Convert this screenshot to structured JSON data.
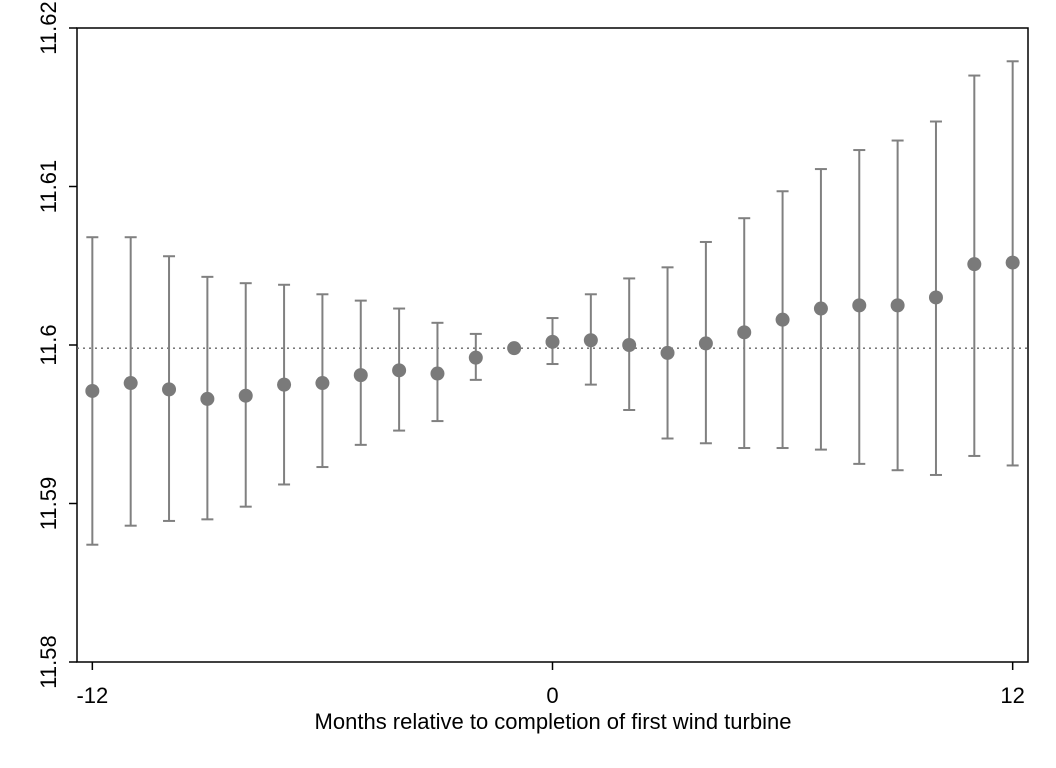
{
  "chart_data": {
    "type": "scatter",
    "title": "",
    "xlabel": "Months relative to completion of first wind turbine",
    "ylabel": "",
    "xlim": [
      -12.4,
      12.4
    ],
    "ylim": [
      11.58,
      11.62
    ],
    "x_ticks": [
      -12,
      0,
      12
    ],
    "x_tick_labels": [
      "-12",
      "0",
      "12"
    ],
    "y_ticks": [
      11.58,
      11.59,
      11.6,
      11.61,
      11.62
    ],
    "y_tick_labels": [
      "11.58",
      "11.59",
      "11.6",
      "11.61",
      "11.62"
    ],
    "reference_line": {
      "y": 11.5998,
      "style": "dotted"
    },
    "grid": false,
    "legend": "none",
    "series": [
      {
        "x": [
          -12,
          -11,
          -10,
          -9,
          -8,
          -7,
          -6,
          -5,
          -4,
          -3,
          -2,
          -1,
          0,
          1,
          2,
          3,
          4,
          5,
          6,
          7,
          8,
          9,
          10,
          11,
          12
        ],
        "y": [
          11.5971,
          11.5976,
          11.5972,
          11.5966,
          11.5968,
          11.5975,
          11.5976,
          11.5981,
          11.5984,
          11.5982,
          11.5992,
          11.5998,
          11.6002,
          11.6003,
          11.6,
          11.5995,
          11.6001,
          11.6008,
          11.6016,
          11.6023,
          11.6025,
          11.6025,
          11.603,
          11.6051,
          11.6052
        ],
        "lower": [
          11.5874,
          11.5886,
          11.5889,
          11.589,
          11.5898,
          11.5912,
          11.5923,
          11.5937,
          11.5946,
          11.5952,
          11.5978,
          11.5998,
          11.5988,
          11.5975,
          11.5959,
          11.5941,
          11.5938,
          11.5935,
          11.5935,
          11.5934,
          11.5925,
          11.5921,
          11.5918,
          11.593,
          11.5924
        ],
        "upper": [
          11.6068,
          11.6068,
          11.6056,
          11.6043,
          11.6039,
          11.6038,
          11.6032,
          11.6028,
          11.6023,
          11.6014,
          11.6007,
          11.5998,
          11.6017,
          11.6032,
          11.6042,
          11.6049,
          11.6065,
          11.608,
          11.6097,
          11.6111,
          11.6123,
          11.6129,
          11.6141,
          11.617,
          11.6179
        ]
      }
    ],
    "colors": {
      "marker": "#7a7a7a",
      "errorbar": "#808080",
      "axis": "#000000",
      "refline": "#666666"
    }
  }
}
